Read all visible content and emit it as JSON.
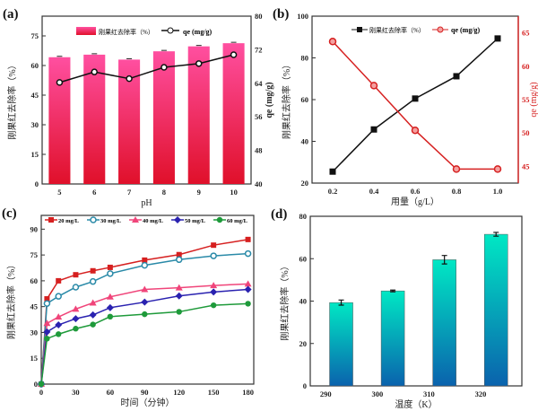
{
  "chart_data": [
    {
      "panel": "(a)",
      "type": "bar+line",
      "xlabel": "pH",
      "ylabel": "刚果红去除率（%）",
      "y2label": "qe (mg/g)",
      "categories": [
        "5",
        "6",
        "7",
        "8",
        "9",
        "10"
      ],
      "series": [
        {
          "name": "刚果红去除率（%）",
          "type": "bar",
          "axis": "left",
          "values": [
            64.2,
            65.5,
            63.0,
            67.2,
            69.7,
            71.3
          ],
          "color": "#e8336e"
        },
        {
          "name": "qe (mg/g)",
          "type": "line",
          "axis": "right",
          "values": [
            64.2,
            66.7,
            65.1,
            67.8,
            68.7,
            70.8
          ],
          "color": "#111111"
        }
      ],
      "ylim": [
        0,
        85
      ],
      "yticks": [
        0,
        15,
        30,
        45,
        60,
        75
      ],
      "y2lim": [
        40,
        80
      ],
      "y2ticks": [
        40,
        48,
        56,
        64,
        72,
        80
      ],
      "legend": "top-center"
    },
    {
      "panel": "(b)",
      "type": "line",
      "xlabel": "用量（g/L）",
      "ylabel": "刚果红去除率（%）",
      "y2label": "qe (mg/g)",
      "x": [
        0.2,
        0.4,
        0.6,
        0.8,
        1.0
      ],
      "series": [
        {
          "name": "刚果红去除率（%）",
          "axis": "left",
          "values": [
            25.5,
            45.7,
            60.5,
            71.2,
            89.3
          ],
          "color": "#111111"
        },
        {
          "name": "qe (mg/g)",
          "axis": "right",
          "values": [
            63.7,
            57.1,
            50.4,
            44.6,
            44.6
          ],
          "color": "#d62020"
        }
      ],
      "xlim": [
        0.1,
        1.1
      ],
      "xticks": [
        0.2,
        0.4,
        0.6,
        0.8,
        1.0
      ],
      "ylim": [
        20,
        100
      ],
      "yticks": [
        20,
        40,
        60,
        80,
        100
      ],
      "y2lim": [
        42.5,
        67.5
      ],
      "y2ticks": [
        45,
        50,
        55,
        60,
        65
      ],
      "legend": "top-center"
    },
    {
      "panel": "(c)",
      "type": "line",
      "xlabel": "时间（分钟）",
      "ylabel": "刚果红去除率（%）",
      "x": [
        0,
        5,
        15,
        30,
        45,
        60,
        90,
        120,
        150,
        180
      ],
      "series": [
        {
          "name": "20 mg/L",
          "values": [
            0,
            49.5,
            60,
            63.5,
            65.8,
            67.8,
            72,
            75.2,
            80.7,
            84
          ],
          "color": "#d62020",
          "marker": "square"
        },
        {
          "name": "30 mg/L",
          "values": [
            0,
            46.8,
            51,
            56.3,
            59.6,
            64.2,
            69,
            72.3,
            74.5,
            75.8
          ],
          "color": "#2a8aa8",
          "marker": "circle-open"
        },
        {
          "name": "40 mg/L",
          "values": [
            0,
            35.3,
            39,
            43.6,
            47.2,
            50.7,
            55,
            56,
            57.3,
            58.2
          ],
          "color": "#f0457a",
          "marker": "triangle"
        },
        {
          "name": "50 mg/L",
          "values": [
            0,
            30.3,
            34.4,
            38,
            40.2,
            44.4,
            47.6,
            51.2,
            53.5,
            55
          ],
          "color": "#2a22b0",
          "marker": "diamond"
        },
        {
          "name": "60 mg/L",
          "values": [
            0,
            26.4,
            29,
            32.2,
            34.6,
            39.2,
            40.6,
            42,
            45.8,
            46.7
          ],
          "color": "#1e9a3a",
          "marker": "circle"
        }
      ],
      "xlim": [
        0,
        185
      ],
      "xticks": [
        0,
        30,
        60,
        90,
        120,
        150,
        180
      ],
      "ylim": [
        0,
        98
      ],
      "yticks": [
        0,
        15,
        30,
        45,
        60,
        75,
        90
      ],
      "legend": "top"
    },
    {
      "panel": "(d)",
      "type": "bar",
      "xlabel": "温度（K）",
      "ylabel": "刚果红去除率（%）",
      "x": [
        293,
        303,
        313,
        323
      ],
      "values": [
        39.3,
        44.8,
        59.5,
        71.5
      ],
      "errors": [
        1.2,
        0.4,
        2.0,
        0.9
      ],
      "xlim": [
        287,
        328
      ],
      "xticks": [
        290,
        300,
        310,
        320
      ],
      "ylim": [
        0,
        80
      ],
      "yticks": [
        0,
        20,
        40,
        60,
        80
      ],
      "colors": [
        "#00e0c0",
        "#0a6fb0"
      ]
    }
  ]
}
